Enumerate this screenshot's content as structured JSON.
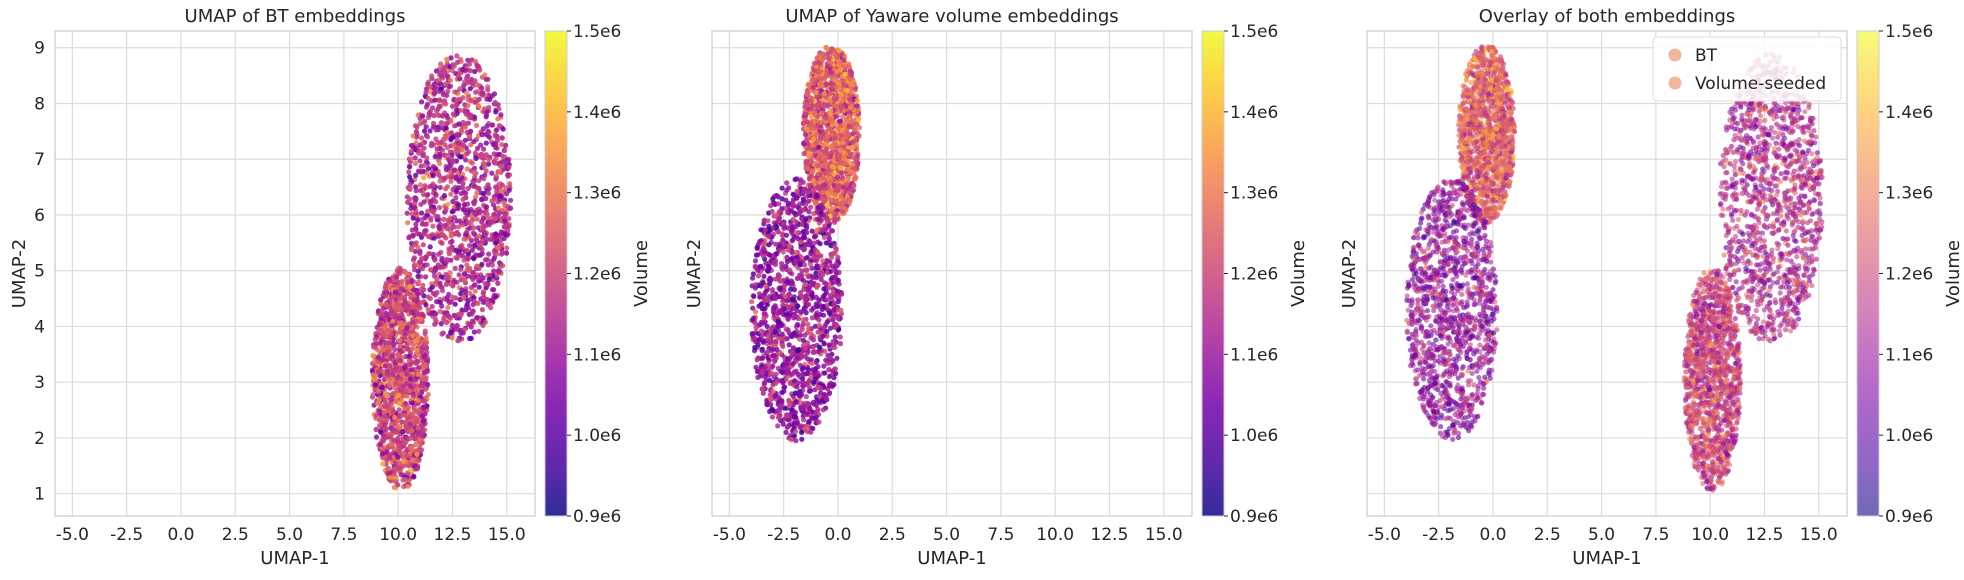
{
  "chart_data": [
    {
      "type": "scatter",
      "title": "UMAP of BT embeddings",
      "xlabel": "UMAP-1",
      "ylabel": "UMAP-2",
      "xlim": [
        -5.8,
        16.3
      ],
      "ylim": [
        0.6,
        9.3
      ],
      "x_ticks": [
        -5.0,
        -2.5,
        0.0,
        2.5,
        5.0,
        7.5,
        10.0,
        12.5,
        15.0
      ],
      "y_ticks": [
        1,
        2,
        3,
        4,
        5,
        6,
        7,
        8,
        9
      ],
      "y_tick_labels_visible": true,
      "grid": true,
      "colormap": "plasma",
      "colorbar": {
        "label": "Volume",
        "min": 900000,
        "max": 1500000,
        "ticks": [
          "0.9e6",
          "1.0e6",
          "1.1e6",
          "1.2e6",
          "1.3e6",
          "1.4e6",
          "1.5e6"
        ]
      },
      "clusters": [
        {
          "center": [
            12.8,
            6.3
          ],
          "rx": 2.4,
          "ry": 2.6,
          "volume_mean": 1150000
        },
        {
          "center": [
            10.1,
            3.05
          ],
          "rx": 1.3,
          "ry": 2.0,
          "volume_mean": 1200000
        }
      ]
    },
    {
      "type": "scatter",
      "title": "UMAP of Yaware volume embeddings",
      "xlabel": "UMAP-1",
      "ylabel": "UMAP-2",
      "xlim": [
        -5.8,
        16.3
      ],
      "ylim": [
        0.6,
        9.3
      ],
      "x_ticks": [
        -5.0,
        -2.5,
        0.0,
        2.5,
        5.0,
        7.5,
        10.0,
        12.5,
        15.0
      ],
      "y_ticks": [
        1,
        2,
        3,
        4,
        5,
        6,
        7,
        8,
        9
      ],
      "y_tick_labels_visible": false,
      "grid": true,
      "colormap": "plasma",
      "colorbar": {
        "label": "Volume",
        "min": 900000,
        "max": 1500000,
        "ticks": [
          "0.9e6",
          "1.0e6",
          "1.1e6",
          "1.2e6",
          "1.3e6",
          "1.4e6",
          "1.5e6"
        ]
      },
      "clusters": [
        {
          "center": [
            -0.3,
            7.45
          ],
          "rx": 1.3,
          "ry": 1.6,
          "volume_mean": 1250000
        },
        {
          "center": [
            -1.9,
            4.3
          ],
          "rx": 2.1,
          "ry": 2.35,
          "volume_mean": 1100000
        }
      ]
    },
    {
      "type": "scatter",
      "title": "Overlay of both embeddings",
      "xlabel": "UMAP-1",
      "ylabel": "UMAP-2",
      "xlim": [
        -5.8,
        16.3
      ],
      "ylim": [
        0.6,
        9.3
      ],
      "x_ticks": [
        -5.0,
        -2.5,
        0.0,
        2.5,
        5.0,
        7.5,
        10.0,
        12.5,
        15.0
      ],
      "y_ticks": [
        1,
        2,
        3,
        4,
        5,
        6,
        7,
        8,
        9
      ],
      "y_tick_labels_visible": false,
      "grid": true,
      "colormap": "plasma",
      "alpha": 0.6,
      "legend": {
        "position": "top-right",
        "entries": [
          "BT",
          "Volume-seeded"
        ],
        "marker_color": "#f2b79a"
      },
      "colorbar": {
        "label": "Volume",
        "min": 900000,
        "max": 1500000,
        "ticks": [
          "0.9e6",
          "1.0e6",
          "1.1e6",
          "1.2e6",
          "1.3e6",
          "1.4e6",
          "1.5e6"
        ]
      },
      "clusters": [
        {
          "center": [
            12.8,
            6.3
          ],
          "rx": 2.4,
          "ry": 2.6,
          "volume_mean": 1150000
        },
        {
          "center": [
            10.1,
            3.05
          ],
          "rx": 1.3,
          "ry": 2.0,
          "volume_mean": 1200000
        },
        {
          "center": [
            -0.3,
            7.45
          ],
          "rx": 1.3,
          "ry": 1.6,
          "volume_mean": 1250000
        },
        {
          "center": [
            -1.9,
            4.3
          ],
          "rx": 2.1,
          "ry": 2.35,
          "volume_mean": 1100000
        }
      ]
    }
  ]
}
